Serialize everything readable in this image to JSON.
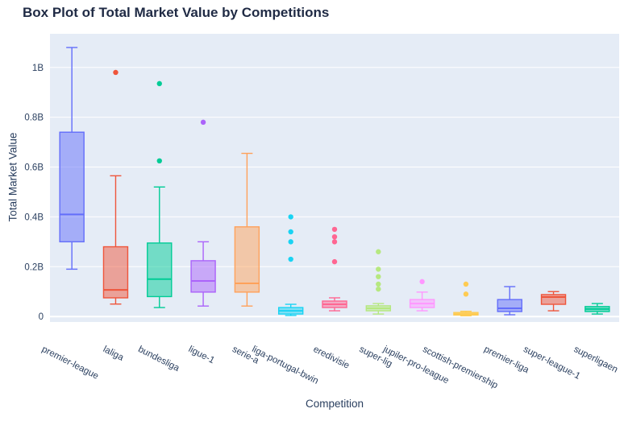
{
  "chart_data": {
    "type": "box",
    "title": "Box Plot of Total Market Value by Competitions",
    "xlabel": "Competition",
    "ylabel": "Total Market Value",
    "unit": "B (billions)",
    "ylim": [
      -0.022,
      1.135
    ],
    "grid": true,
    "legend": "none",
    "yticks": {
      "values": [
        0,
        0.2,
        0.4,
        0.6,
        0.8,
        1.0
      ],
      "labels": [
        "0",
        "0.2B",
        "0.4B",
        "0.6B",
        "0.8B",
        "1B"
      ]
    },
    "categories": [
      "premier-league",
      "laliga",
      "bundesliga",
      "ligue-1",
      "serie-a",
      "liga-portugal-bwin",
      "eredivisie",
      "super-lig",
      "jupiler-pro-league",
      "scottish-premiership",
      "premier-liga",
      "super-league-1",
      "superligaen"
    ],
    "boxes": [
      {
        "name": "premier-league",
        "color": "#636EFA",
        "low": 0.19,
        "q1": 0.3,
        "median": 0.41,
        "q3": 0.74,
        "high": 1.08,
        "outliers": []
      },
      {
        "name": "laliga",
        "color": "#EF553B",
        "low": 0.05,
        "q1": 0.075,
        "median": 0.107,
        "q3": 0.28,
        "high": 0.565,
        "outliers": [
          0.98
        ]
      },
      {
        "name": "bundesliga",
        "color": "#00CC96",
        "low": 0.036,
        "q1": 0.08,
        "median": 0.15,
        "q3": 0.295,
        "high": 0.52,
        "outliers": [
          0.625,
          0.935
        ]
      },
      {
        "name": "ligue-1",
        "color": "#AB63FA",
        "low": 0.042,
        "q1": 0.098,
        "median": 0.143,
        "q3": 0.224,
        "high": 0.3,
        "outliers": [
          0.78
        ]
      },
      {
        "name": "serie-a",
        "color": "#FFA15A",
        "low": 0.042,
        "q1": 0.098,
        "median": 0.133,
        "q3": 0.36,
        "high": 0.655,
        "outliers": []
      },
      {
        "name": "liga-portugal-bwin",
        "color": "#19D3F3",
        "low": 0.004,
        "q1": 0.01,
        "median": 0.023,
        "q3": 0.036,
        "high": 0.049,
        "outliers": [
          0.23,
          0.3,
          0.34,
          0.4
        ]
      },
      {
        "name": "eredivisie",
        "color": "#FF6692",
        "low": 0.023,
        "q1": 0.036,
        "median": 0.049,
        "q3": 0.062,
        "high": 0.075,
        "outliers": [
          0.22,
          0.3,
          0.32,
          0.35
        ]
      },
      {
        "name": "super-lig",
        "color": "#B6E880",
        "low": 0.01,
        "q1": 0.023,
        "median": 0.033,
        "q3": 0.043,
        "high": 0.052,
        "outliers": [
          0.11,
          0.13,
          0.16,
          0.19,
          0.26
        ]
      },
      {
        "name": "jupiler-pro-league",
        "color": "#FF97FF",
        "low": 0.023,
        "q1": 0.036,
        "median": 0.052,
        "q3": 0.068,
        "high": 0.098,
        "outliers": [
          0.14
        ]
      },
      {
        "name": "scottish-premiership",
        "color": "#FECB52",
        "low": 0.003,
        "q1": 0.006,
        "median": 0.01,
        "q3": 0.016,
        "high": 0.021,
        "outliers": [
          0.09,
          0.13
        ]
      },
      {
        "name": "premier-liga",
        "color": "#636EFA",
        "low": 0.007,
        "q1": 0.02,
        "median": 0.033,
        "q3": 0.068,
        "high": 0.12,
        "outliers": []
      },
      {
        "name": "super-league-1",
        "color": "#EF553B",
        "low": 0.023,
        "q1": 0.049,
        "median": 0.078,
        "q3": 0.088,
        "high": 0.1,
        "outliers": []
      },
      {
        "name": "superligaen",
        "color": "#00CC96",
        "low": 0.01,
        "q1": 0.02,
        "median": 0.03,
        "q3": 0.04,
        "high": 0.052,
        "outliers": []
      }
    ]
  },
  "layout_colors": {
    "paper_background": "#FFFFFF",
    "plot_background": "#E5ECF6",
    "gridline": "#FFFFFF",
    "text": "#2a3f5f"
  }
}
